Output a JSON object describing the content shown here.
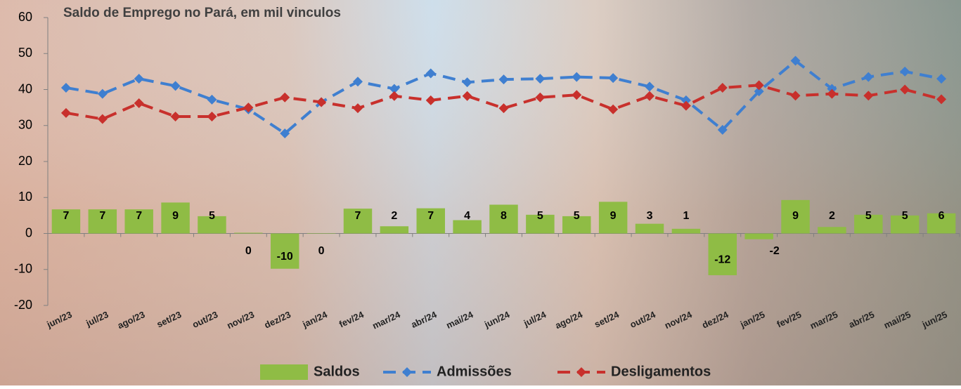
{
  "chart_data": {
    "type": "bar-line",
    "title": "Saldo de Emprego no Pará, em mil vinculos",
    "categories": [
      "jun/23",
      "jul/23",
      "ago/23",
      "set/23",
      "out/23",
      "nov/23",
      "dez/23",
      "jan/24",
      "fev/24",
      "mar/24",
      "abr/24",
      "mai/24",
      "jun/24",
      "jul/24",
      "ago/24",
      "set/24",
      "out/24",
      "nov/24",
      "dez/24",
      "jan/25",
      "fev/25",
      "mar/25",
      "abr/25",
      "mai/25",
      "jun/25"
    ],
    "series": [
      {
        "name": "Saldos",
        "type": "bar",
        "color": "#8fbc45",
        "values": [
          6.7,
          6.7,
          6.7,
          8.6,
          4.8,
          0.2,
          -9.8,
          0.1,
          6.9,
          2.0,
          7.0,
          3.7,
          8.0,
          5.2,
          4.8,
          8.8,
          2.7,
          1.3,
          -11.6,
          -1.6,
          9.3,
          1.8,
          5.2,
          5.0,
          5.6
        ],
        "value_labels": [
          "7",
          "7",
          "7",
          "9",
          "5",
          "0",
          "-10",
          "0",
          "7",
          "2",
          "7",
          "4",
          "8",
          "5",
          "5",
          "9",
          "3",
          "1",
          "-12",
          "-2",
          "9",
          "2",
          "5",
          "5",
          "6"
        ]
      },
      {
        "name": "Admissões",
        "type": "line",
        "color": "#3f7fd0",
        "values": [
          40.5,
          38.8,
          43.0,
          41.0,
          37.2,
          34.5,
          27.8,
          36.5,
          42.2,
          40.2,
          44.5,
          42.0,
          42.8,
          43.0,
          43.5,
          43.2,
          40.8,
          37.0,
          28.8,
          39.5,
          48.0,
          40.2,
          43.5,
          45.0,
          43.0
        ]
      },
      {
        "name": "Desligamentos",
        "type": "line",
        "color": "#c8302c",
        "values": [
          33.5,
          31.8,
          36.2,
          32.5,
          32.5,
          35.0,
          37.8,
          36.5,
          34.8,
          38.2,
          37.0,
          38.2,
          34.8,
          37.8,
          38.5,
          34.5,
          38.2,
          35.5,
          40.5,
          41.2,
          38.3,
          38.8,
          38.3,
          40.0,
          37.3
        ]
      }
    ],
    "ylim": [
      -20,
      60
    ],
    "yticks": [
      -20,
      -10,
      0,
      10,
      20,
      30,
      40,
      50,
      60
    ],
    "legend": "bottom"
  }
}
